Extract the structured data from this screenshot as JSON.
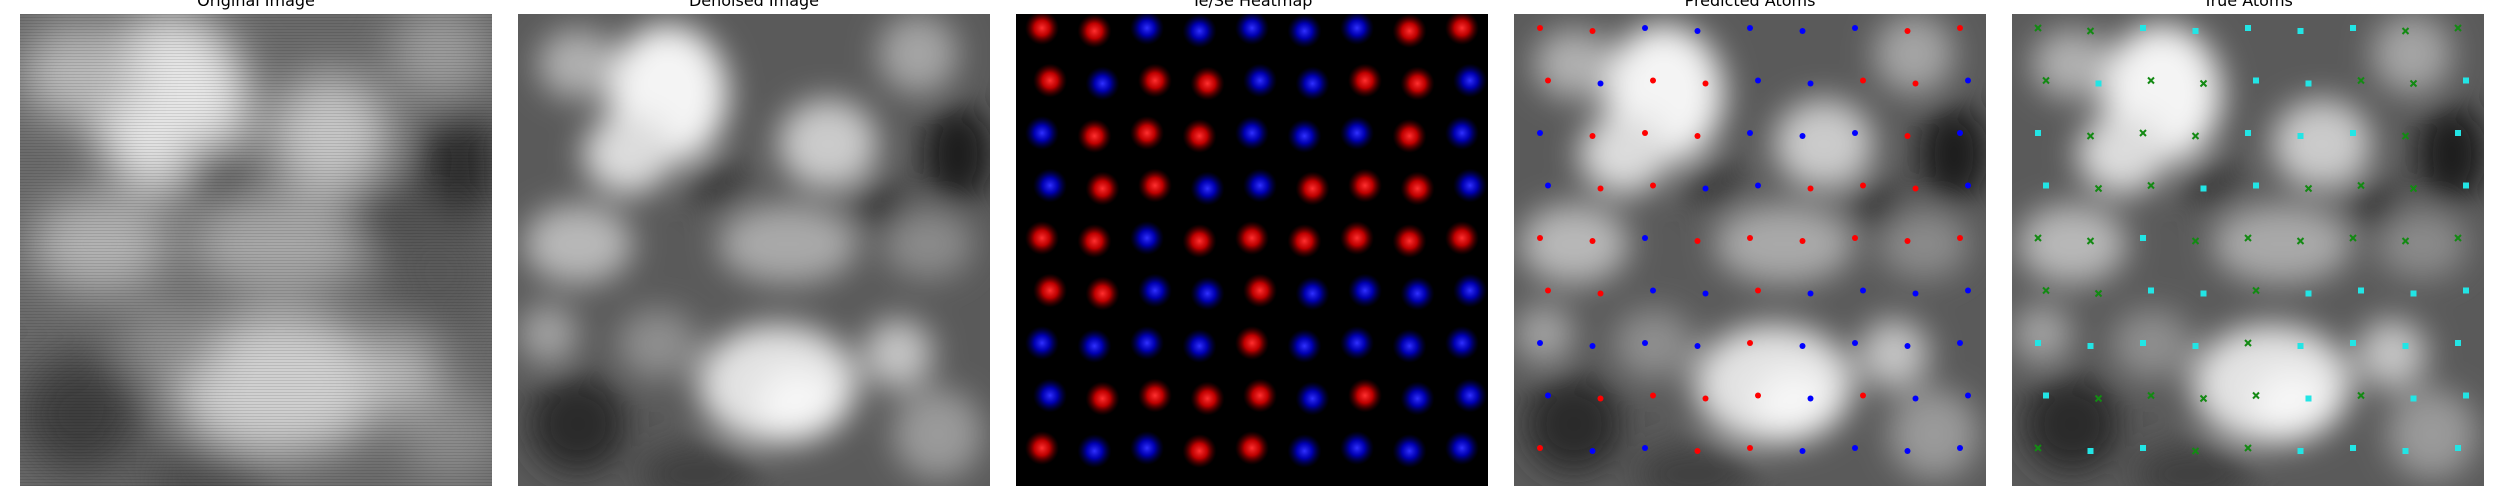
{
  "panels": [
    {
      "title": "Original Image"
    },
    {
      "title": "Denoised Image"
    },
    {
      "title": "Te/Se Heatmap"
    },
    {
      "title": "Predicted Atoms"
    },
    {
      "title": "True Atoms"
    }
  ],
  "colors": {
    "background": "#ffffff",
    "te_red": "#ff1a1a",
    "se_blue": "#1a1aff",
    "true_green": "#138a13",
    "true_cyan": "#22e5e5",
    "predicted_red": "#ff0000",
    "predicted_blue": "#0000ff"
  },
  "icons": {
    "predicted_marker": "dot",
    "true_marker_green": "x-cross",
    "true_marker_cyan": "square"
  }
}
